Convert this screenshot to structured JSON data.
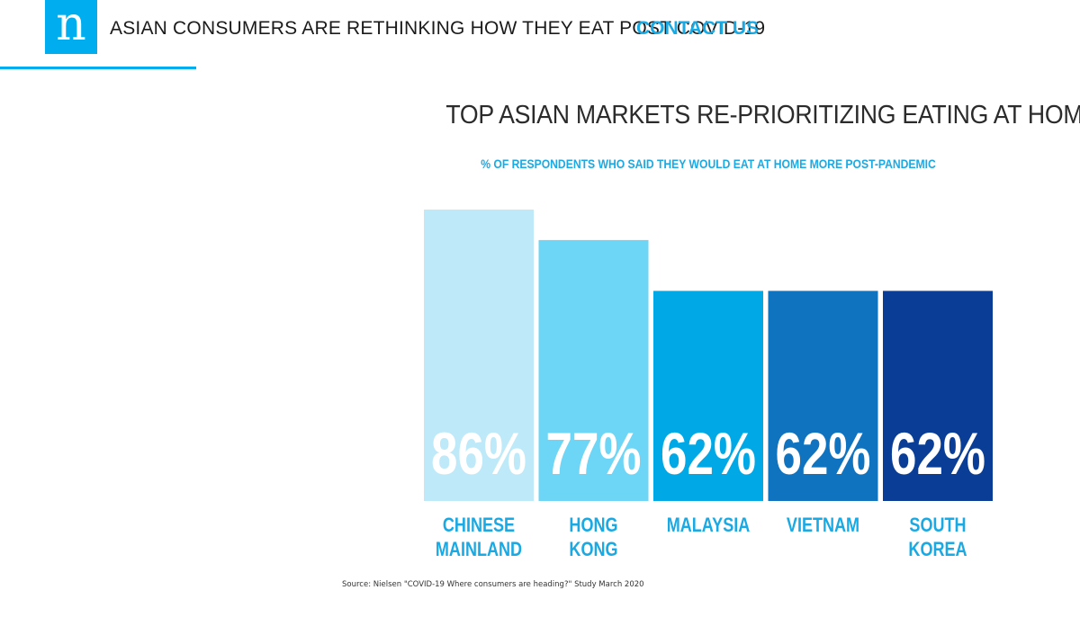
{
  "header": {
    "logo_letter": "n",
    "title": "ASIAN CONSUMERS ARE RETHINKING HOW THEY EAT POST COVID-19",
    "contact_label": "CONTACT US"
  },
  "chart_data": {
    "type": "bar",
    "title": "TOP ASIAN MARKETS RE-PRIORITIZING EATING AT HOME",
    "subtitle": "% OF RESPONDENTS WHO SAID THEY WOULD EAT AT HOME MORE POST-PANDEMIC",
    "categories": [
      [
        "CHINESE",
        "MAINLAND"
      ],
      [
        "HONG",
        "KONG"
      ],
      [
        "MALAYSIA"
      ],
      [
        "VIETNAM"
      ],
      [
        "SOUTH",
        "KOREA"
      ]
    ],
    "values": [
      86,
      77,
      62,
      62,
      62
    ],
    "data_labels": [
      "86%",
      "77%",
      "62%",
      "62%",
      "62%"
    ],
    "colors": [
      "#bde9f8",
      "#6dd5f6",
      "#00a9e6",
      "#0f73c0",
      "#0a3e96"
    ],
    "label_color": "#1aa9e3",
    "ylim": [
      0,
      86
    ],
    "grid": false,
    "legend": "none"
  },
  "source": "Source: Nielsen \"COVID-19 Where consumers are heading?\" Study March 2020"
}
